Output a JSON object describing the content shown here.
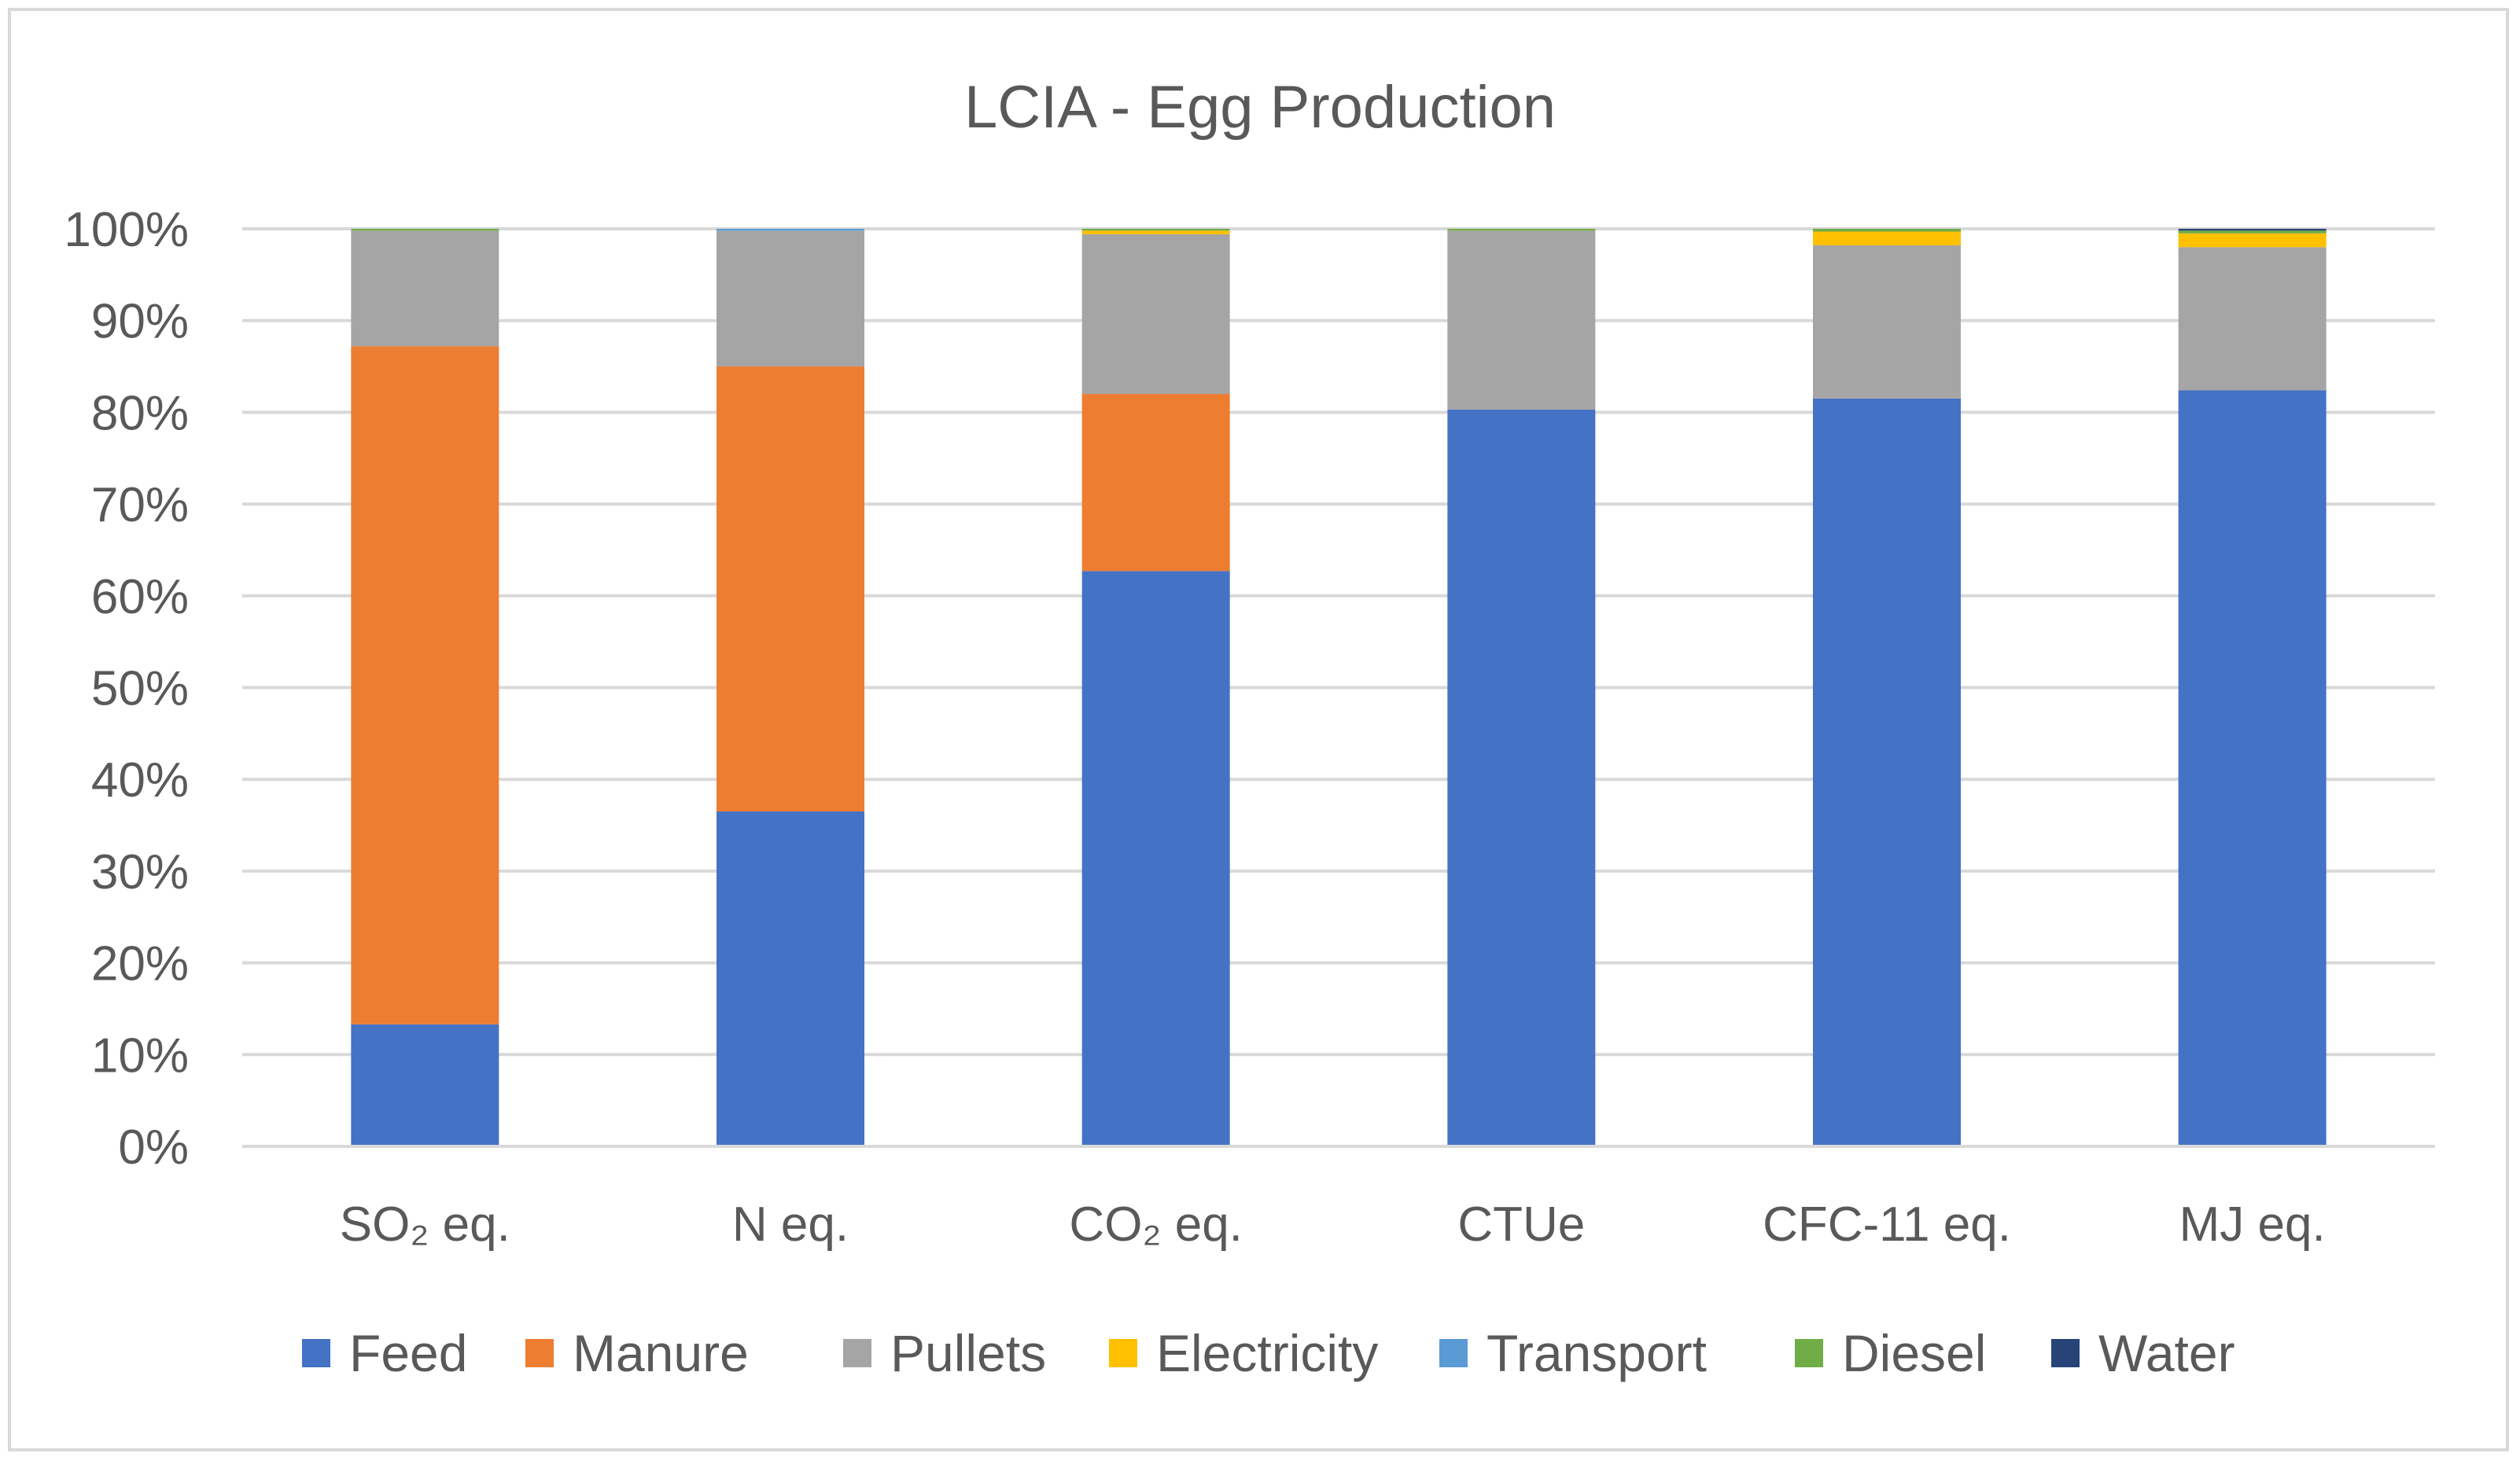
{
  "chart_data": {
    "type": "bar",
    "stacked": true,
    "title": "LCIA - Egg Production",
    "xlabel": "",
    "ylabel": "",
    "ylim": [
      0,
      100
    ],
    "yticks": [
      "0%",
      "10%",
      "20%",
      "30%",
      "40%",
      "50%",
      "60%",
      "70%",
      "80%",
      "90%",
      "100%"
    ],
    "grid": true,
    "legend_position": "bottom",
    "categories": [
      "SO₂ eq.",
      "N eq.",
      "CO₂ eq.",
      "CTUe",
      "CFC-11 eq.",
      "MJ eq."
    ],
    "series": [
      {
        "name": "Feed",
        "color": "#4472C4",
        "values": [
          13.3,
          36.5,
          62.7,
          80.3,
          81.5,
          82.4
        ]
      },
      {
        "name": "Manure",
        "color": "#ED7D31",
        "values": [
          73.9,
          48.5,
          19.3,
          0,
          0,
          0
        ]
      },
      {
        "name": "Pullets",
        "color": "#A5A5A5",
        "values": [
          12.6,
          14.8,
          17.4,
          19.5,
          16.7,
          15.6
        ]
      },
      {
        "name": "Electricity",
        "color": "#FFC000",
        "values": [
          0,
          0,
          0.4,
          0,
          1.5,
          1.5
        ]
      },
      {
        "name": "Transport",
        "color": "#5B9BD5",
        "values": [
          0,
          0.2,
          0,
          0,
          0,
          0
        ]
      },
      {
        "name": "Diesel",
        "color": "#70AD47",
        "values": [
          0.2,
          0,
          0.2,
          0.2,
          0.3,
          0.3
        ]
      },
      {
        "name": "Water",
        "color": "#264478",
        "values": [
          0,
          0,
          0,
          0,
          0,
          0.2
        ]
      }
    ]
  }
}
